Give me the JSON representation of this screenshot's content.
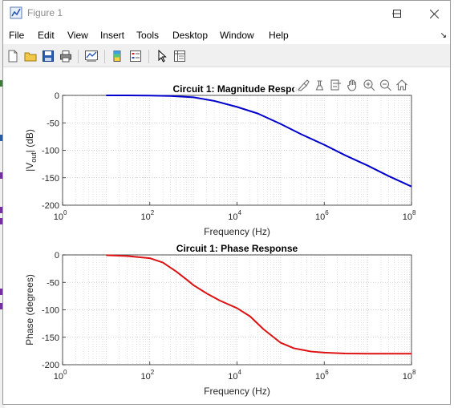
{
  "window": {
    "title": "Figure 1",
    "minimize_glyph": "─",
    "maximize_glyph": "☐",
    "close_glyph": "✕"
  },
  "menu": {
    "items": [
      "File",
      "Edit",
      "View",
      "Insert",
      "Tools",
      "Desktop",
      "Window",
      "Help"
    ],
    "dock_glyph": "↘"
  },
  "toolbar": {
    "buttons": [
      "new-figure-icon",
      "open-file-icon",
      "save-icon",
      "print-icon",
      "link-plot-icon",
      "insert-colorbar-icon",
      "insert-legend-icon",
      "edit-plot-arrow-icon",
      "property-inspector-icon"
    ]
  },
  "axes_toolbar": {
    "buttons": [
      "brush-icon",
      "data-tips-icon",
      "export-icon",
      "pan-hand-icon",
      "zoom-in-icon",
      "zoom-out-icon",
      "home-icon"
    ]
  },
  "colors": {
    "magnitude_line": "#0000cc",
    "phase_line": "#dd1111",
    "grid": "#d0d0d0"
  },
  "chart_data": [
    {
      "type": "line",
      "title": "Circuit 1: Magnitude Respor",
      "xlabel": "Frequency (Hz)",
      "ylabel_parts": [
        "|V",
        "out",
        "| (dB)"
      ],
      "xscale": "log",
      "xlim": [
        1,
        100000000
      ],
      "ylim": [
        -200,
        0
      ],
      "xtick_values": [
        1,
        100,
        10000,
        1000000,
        100000000
      ],
      "xtick_base": "10",
      "xtick_exponents": [
        "0",
        "2",
        "4",
        "6",
        "8"
      ],
      "yticks": [
        0,
        -50,
        -100,
        -150,
        -200
      ],
      "grid": true,
      "series": [
        {
          "x": [
            10,
            30,
            100,
            300,
            1000,
            3000,
            10000,
            30000,
            100000,
            300000,
            1000000,
            3000000,
            10000000,
            30000000,
            100000000
          ],
          "y": [
            0,
            0,
            -0.3,
            -1,
            -3.5,
            -10,
            -21,
            -33,
            -52,
            -71,
            -90,
            -109,
            -128,
            -147,
            -166
          ]
        }
      ]
    },
    {
      "type": "line",
      "title": "Circuit 1: Phase Response",
      "xlabel": "Frequency (Hz)",
      "ylabel": "Phase (degrees)",
      "xscale": "log",
      "xlim": [
        1,
        100000000
      ],
      "ylim": [
        -200,
        0
      ],
      "xtick_values": [
        1,
        100,
        10000,
        1000000,
        100000000
      ],
      "xtick_base": "10",
      "xtick_exponents": [
        "0",
        "2",
        "4",
        "6",
        "8"
      ],
      "yticks": [
        0,
        -50,
        -100,
        -150,
        -200
      ],
      "grid": true,
      "series": [
        {
          "x": [
            10,
            30,
            100,
            200,
            400,
            700,
            1000,
            2000,
            4000,
            10000,
            20000,
            40000,
            100000,
            200000,
            500000,
            1000000,
            3000000,
            10000000,
            100000000
          ],
          "y": [
            -0.5,
            -2,
            -6,
            -14,
            -30,
            -45,
            -55,
            -70,
            -83,
            -97,
            -112,
            -135,
            -160,
            -170,
            -176,
            -178,
            -179.5,
            -180,
            -180
          ]
        }
      ]
    }
  ]
}
